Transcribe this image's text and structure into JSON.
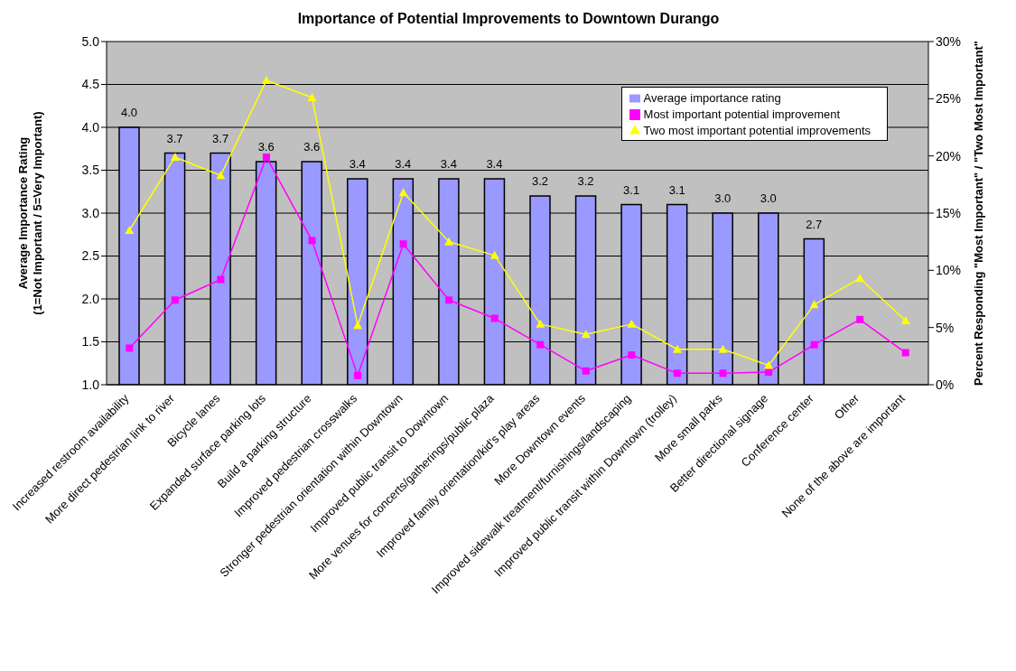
{
  "chart_data": {
    "type": "bar",
    "title": "Importance of Potential Improvements to Downtown Durango",
    "ylabel": "Average Importance Rating\n(1=Not Important / 5=Very Important)",
    "y2label": "Percent Responding \"Most Important\" / \"Two Most Important\"",
    "categories": [
      "Increased restroom availability",
      "More direct pedestrian link to river",
      "Bicycle lanes",
      "Expanded surface parking lots",
      "Build a parking structure",
      "Improved pedestrian crosswalks",
      "Stronger pedestrian orientation within Downtown",
      "Improved public transit to Downtown",
      "More venues for concerts/gatherings/public plaza",
      "Improved family orientation/kid's play areas",
      "More Downtown events",
      "Improved sidewalk treatment/furnishings/landscaping",
      "Improved public transit within Downtown (trolley)",
      "More small parks",
      "Better directional signage",
      "Conference center",
      "Other",
      "None of the above are important"
    ],
    "series": [
      {
        "name": "Average importance rating",
        "color": "#9999ff",
        "values": [
          4.0,
          3.7,
          3.7,
          3.6,
          3.6,
          3.4,
          3.4,
          3.4,
          3.4,
          3.2,
          3.2,
          3.1,
          3.1,
          3.0,
          3.0,
          2.7,
          null,
          null
        ],
        "value_labels": [
          "4.0",
          "3.7",
          "3.7",
          "3.6",
          "3.6",
          "3.4",
          "3.4",
          "3.4",
          "3.4",
          "3.2",
          "3.2",
          "3.1",
          "3.1",
          "3.0",
          "3.0",
          "2.7",
          null,
          null
        ]
      },
      {
        "name": "Most important potential improvement",
        "type": "line",
        "axis": "y2",
        "marker": "square",
        "color": "#ff00ff",
        "values": [
          3.2,
          7.4,
          9.2,
          19.9,
          12.6,
          0.8,
          12.3,
          7.4,
          5.8,
          3.5,
          1.2,
          2.6,
          1.0,
          1.0,
          1.1,
          3.5,
          5.7,
          2.8
        ]
      },
      {
        "name": "Two most important potential improvements",
        "type": "line",
        "axis": "y2",
        "marker": "triangle",
        "color": "#ffff00",
        "values": [
          13.5,
          19.9,
          18.3,
          26.6,
          25.1,
          5.2,
          16.8,
          12.5,
          11.3,
          5.3,
          4.4,
          5.3,
          3.1,
          3.1,
          1.7,
          7.0,
          9.3,
          5.6
        ]
      }
    ],
    "ylim": [
      1,
      5
    ],
    "yticks": [
      {
        "value": 1,
        "label": "1.0"
      },
      {
        "value": 1.5,
        "label": "1.5"
      },
      {
        "value": 2,
        "label": "2.0"
      },
      {
        "value": 2.5,
        "label": "2.5"
      },
      {
        "value": 3,
        "label": "3.0"
      },
      {
        "value": 3.5,
        "label": "3.5"
      },
      {
        "value": 4,
        "label": "4.0"
      },
      {
        "value": 4.5,
        "label": "4.5"
      },
      {
        "value": 5,
        "label": "5.0"
      }
    ],
    "y2lim": [
      0,
      30
    ],
    "y2ticks": [
      {
        "value": 0,
        "label": "0%"
      },
      {
        "value": 5,
        "label": "5%"
      },
      {
        "value": 10,
        "label": "10%"
      },
      {
        "value": 15,
        "label": "15%"
      },
      {
        "value": 20,
        "label": "20%"
      },
      {
        "value": 25,
        "label": "25%"
      },
      {
        "value": 30,
        "label": "30%"
      }
    ],
    "grid": "y",
    "legend": "top right"
  }
}
